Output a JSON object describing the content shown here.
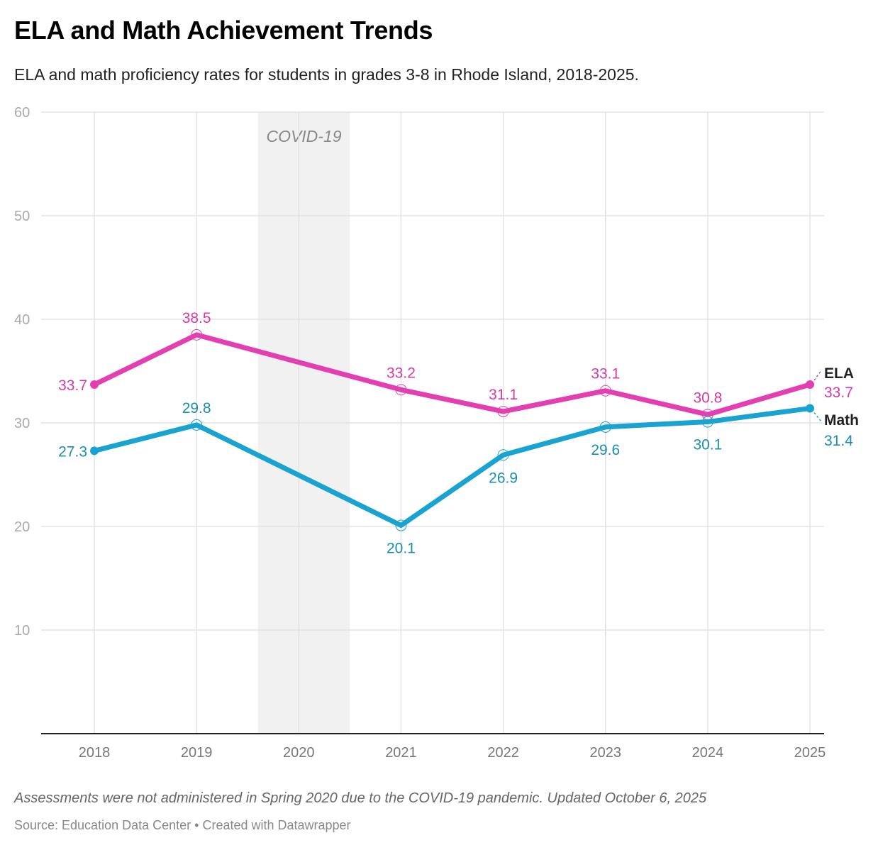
{
  "chart_data": {
    "type": "line",
    "title": "ELA and Math Achievement Trends",
    "subtitle": "ELA and math proficiency rates for students in grades 3-8 in Rhode Island, 2018-2025.",
    "x": [
      "2018",
      "2019",
      "2020",
      "2021",
      "2022",
      "2023",
      "2024",
      "2025"
    ],
    "ylim": [
      0,
      60
    ],
    "yticks": [
      "10",
      "20",
      "30",
      "40",
      "50",
      "60"
    ],
    "grid": true,
    "annotation": {
      "label": "COVID-19",
      "range": [
        "2019.6",
        "2020.5"
      ]
    },
    "series": [
      {
        "name": "ELA",
        "color": "#e43fb1",
        "label_color": "#d63aa5",
        "points": [
          [
            "2018",
            33.7
          ],
          [
            "2019",
            38.5
          ],
          [
            "2021",
            33.2
          ],
          [
            "2022",
            31.1
          ],
          [
            "2023",
            33.1
          ],
          [
            "2024",
            30.8
          ],
          [
            "2025",
            33.7
          ]
        ],
        "labels": [
          "33.7",
          "38.5",
          "33.2",
          "31.1",
          "33.1",
          "30.8",
          "33.7"
        ]
      },
      {
        "name": "Math",
        "color": "#18a3d0",
        "label_color": "#1a8db5",
        "points": [
          [
            "2018",
            27.3
          ],
          [
            "2019",
            29.8
          ],
          [
            "2021",
            20.1
          ],
          [
            "2022",
            26.9
          ],
          [
            "2023",
            29.6
          ],
          [
            "2024",
            30.1
          ],
          [
            "2025",
            31.4
          ]
        ],
        "labels": [
          "27.3",
          "29.8",
          "20.1",
          "26.9",
          "29.6",
          "30.1",
          "31.4"
        ]
      }
    ],
    "note": "Assessments were not administered in Spring 2020 due to the COVID-19 pandemic. Updated October 6, 2025",
    "source": "Source: Education Data Center • Created with Datawrapper"
  }
}
